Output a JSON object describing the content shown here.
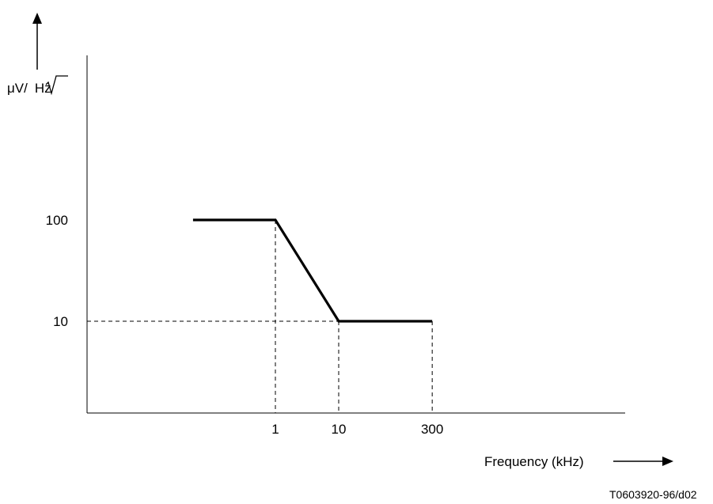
{
  "chart_data": {
    "type": "line",
    "title": "",
    "ylabel": "μV/√Hz",
    "ylabel_parts": {
      "prefix": "μV/",
      "radicand": "Hz"
    },
    "xlabel": "Frequency (kHz)",
    "x_scale": "log",
    "y_scale": "log",
    "x_ticks": [
      {
        "value": 1,
        "label": "1"
      },
      {
        "value": 10,
        "label": "10"
      },
      {
        "value": 300,
        "label": "300"
      }
    ],
    "y_ticks": [
      {
        "value": 10,
        "label": "10"
      },
      {
        "value": 100,
        "label": "100"
      }
    ],
    "series": [
      {
        "color": "#000000",
        "points": [
          {
            "x": 0.05,
            "y": 100
          },
          {
            "x": 1,
            "y": 100
          },
          {
            "x": 10,
            "y": 10
          },
          {
            "x": 300,
            "y": 10
          }
        ]
      }
    ],
    "grid": false,
    "legend": "none"
  },
  "footer": {
    "reference": "T0603920-96/d02"
  }
}
